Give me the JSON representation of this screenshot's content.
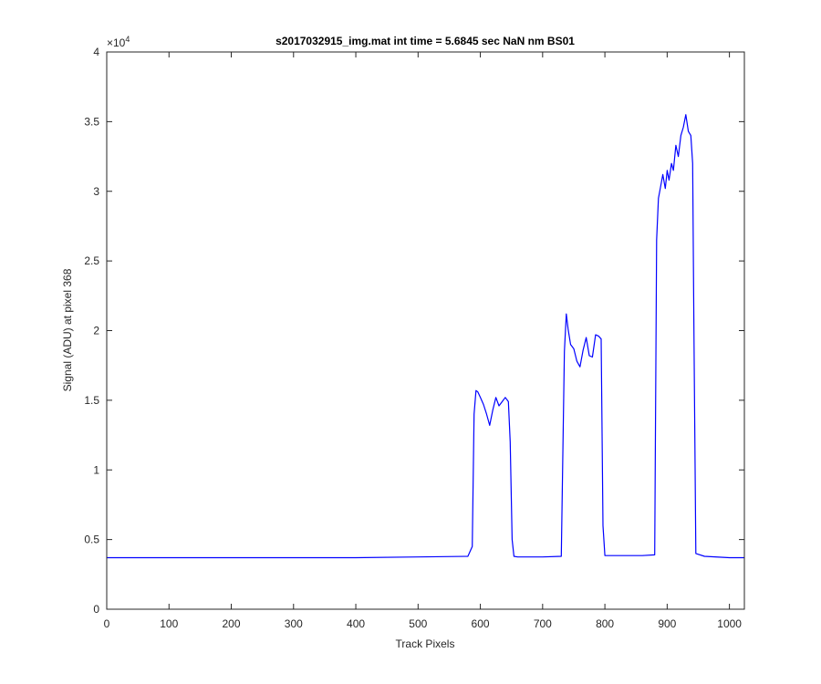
{
  "colors": {
    "series": "#0000ff",
    "axes": "#262626",
    "background": "#ffffff"
  },
  "chart_data": {
    "type": "line",
    "title": "s2017032915_img.mat int time = 5.6845 sec  NaN nm BS01",
    "xlabel": "Track Pixels",
    "ylabel": "Signal (ADU) at pixel 368",
    "y_exponent_label": "×10",
    "y_exponent_power": "4",
    "xlim": [
      0,
      1024
    ],
    "ylim": [
      0,
      40000
    ],
    "grid": false,
    "box": true,
    "x_ticks": [
      0,
      100,
      200,
      300,
      400,
      500,
      600,
      700,
      800,
      900,
      1000
    ],
    "x_tick_labels": [
      "0",
      "100",
      "200",
      "300",
      "400",
      "500",
      "600",
      "700",
      "800",
      "900",
      "1000"
    ],
    "y_ticks": [
      0,
      5000,
      10000,
      15000,
      20000,
      25000,
      30000,
      35000,
      40000
    ],
    "y_tick_labels": [
      "0",
      "0.5",
      "1",
      "1.5",
      "2",
      "2.5",
      "3",
      "3.5",
      "4"
    ],
    "series": [
      {
        "color": "#0000ff",
        "x": [
          0,
          100,
          200,
          300,
          400,
          500,
          580,
          587,
          590,
          593,
          596,
          600,
          605,
          610,
          615,
          620,
          625,
          630,
          635,
          640,
          645,
          648,
          651,
          654,
          660,
          700,
          730,
          735,
          738,
          741,
          745,
          750,
          755,
          760,
          765,
          770,
          775,
          780,
          785,
          790,
          794,
          797,
          800,
          860,
          880,
          883,
          886,
          889,
          893,
          897,
          900,
          903,
          907,
          910,
          914,
          918,
          922,
          926,
          930,
          934,
          938,
          941,
          943,
          946,
          960,
          1000,
          1024
        ],
        "y": [
          3700,
          3700,
          3700,
          3700,
          3700,
          3750,
          3800,
          4500,
          14000,
          15700,
          15600,
          15200,
          14700,
          14000,
          13200,
          14300,
          15200,
          14600,
          14900,
          15200,
          14900,
          12000,
          5000,
          3800,
          3750,
          3750,
          3800,
          18500,
          21200,
          20100,
          19000,
          18700,
          17800,
          17400,
          18600,
          19500,
          18200,
          18100,
          19700,
          19600,
          19400,
          6000,
          3850,
          3850,
          3900,
          26500,
          29500,
          30200,
          31200,
          30200,
          31500,
          30800,
          32000,
          31500,
          33300,
          32500,
          34000,
          34600,
          35500,
          34300,
          34000,
          32000,
          20000,
          4000,
          3800,
          3700,
          3700
        ]
      }
    ]
  }
}
